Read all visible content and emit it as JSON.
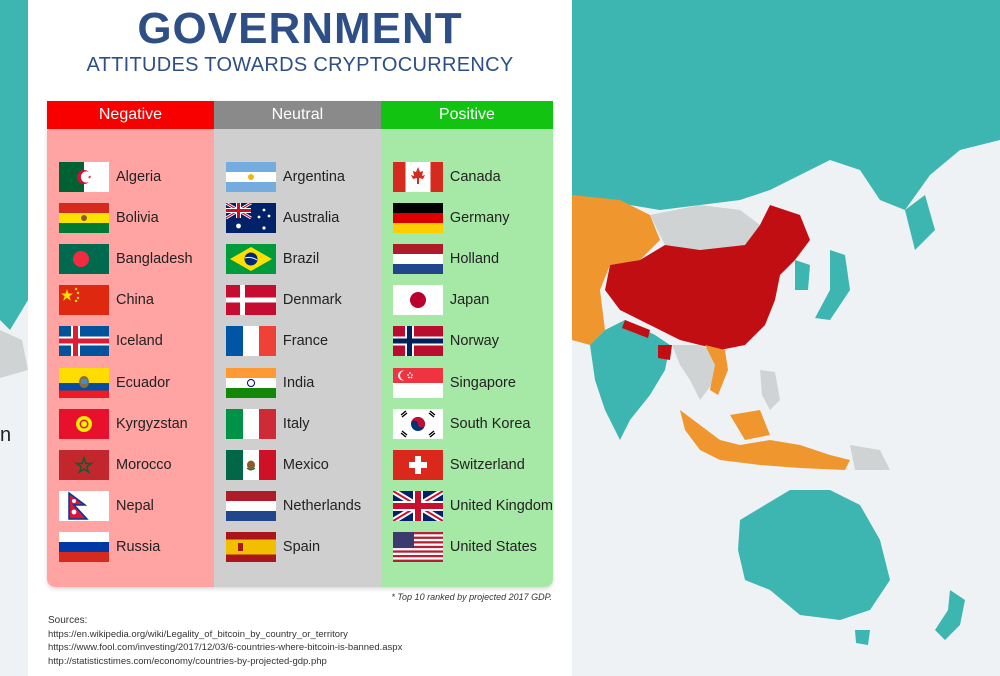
{
  "header": {
    "title": "GOVERNMENT",
    "subtitle": "ATTITUDES TOWARDS CRYPTOCURRENCY"
  },
  "left_edge_text": "n",
  "colors": {
    "negative": "#f90000",
    "negative_bg": "#ffa3a3",
    "neutral": "#8a8a8a",
    "neutral_bg": "#cfcfcf",
    "positive": "#12c312",
    "positive_bg": "#a6e8a6",
    "title": "#2d4f86",
    "map_ocean": "#eef2f4",
    "map_land_default": "#3db5b0",
    "map_land_unknown": "#cfd3d4",
    "map_negative": "#c00e13",
    "map_restrictive": "#f0962f"
  },
  "columns": [
    {
      "label": "Negative",
      "countries": [
        {
          "name": "Algeria",
          "flag": "algeria-flag-icon"
        },
        {
          "name": "Bolivia",
          "flag": "bolivia-flag-icon"
        },
        {
          "name": "Bangladesh",
          "flag": "bangladesh-flag-icon"
        },
        {
          "name": "China",
          "flag": "china-flag-icon"
        },
        {
          "name": "Iceland",
          "flag": "iceland-flag-icon"
        },
        {
          "name": "Ecuador",
          "flag": "ecuador-flag-icon"
        },
        {
          "name": "Kyrgyzstan",
          "flag": "kyrgyzstan-flag-icon"
        },
        {
          "name": "Morocco",
          "flag": "morocco-flag-icon"
        },
        {
          "name": "Nepal",
          "flag": "nepal-flag-icon"
        },
        {
          "name": "Russia",
          "flag": "russia-flag-icon"
        }
      ]
    },
    {
      "label": "Neutral",
      "countries": [
        {
          "name": "Argentina",
          "flag": "argentina-flag-icon"
        },
        {
          "name": "Australia",
          "flag": "australia-flag-icon"
        },
        {
          "name": "Brazil",
          "flag": "brazil-flag-icon"
        },
        {
          "name": "Denmark",
          "flag": "denmark-flag-icon"
        },
        {
          "name": "France",
          "flag": "france-flag-icon"
        },
        {
          "name": "India",
          "flag": "india-flag-icon"
        },
        {
          "name": "Italy",
          "flag": "italy-flag-icon"
        },
        {
          "name": "Mexico",
          "flag": "mexico-flag-icon"
        },
        {
          "name": "Netherlands",
          "flag": "netherlands-flag-icon"
        },
        {
          "name": "Spain",
          "flag": "spain-flag-icon"
        }
      ]
    },
    {
      "label": "Positive",
      "countries": [
        {
          "name": "Canada",
          "flag": "canada-flag-icon"
        },
        {
          "name": "Germany",
          "flag": "germany-flag-icon"
        },
        {
          "name": "Holland",
          "flag": "holland-flag-icon"
        },
        {
          "name": "Japan",
          "flag": "japan-flag-icon"
        },
        {
          "name": "Norway",
          "flag": "norway-flag-icon"
        },
        {
          "name": "Singapore",
          "flag": "singapore-flag-icon"
        },
        {
          "name": "South Korea",
          "flag": "south-korea-flag-icon"
        },
        {
          "name": "Switzerland",
          "flag": "switzerland-flag-icon"
        },
        {
          "name": "United Kingdom",
          "flag": "uk-flag-icon"
        },
        {
          "name": "United States",
          "flag": "usa-flag-icon"
        }
      ]
    }
  ],
  "footnote": "* Top 10 ranked by projected 2017 GDP.",
  "sources": {
    "label": "Sources:",
    "links": [
      "https://en.wikipedia.org/wiki/Legality_of_bitcoin_by_country_or_territory",
      "https://www.fool.com/investing/2017/12/03/6-countries-where-bitcoin-is-banned.aspx",
      "http://statisticstimes.com/economy/countries-by-projected-gdp.php"
    ]
  }
}
